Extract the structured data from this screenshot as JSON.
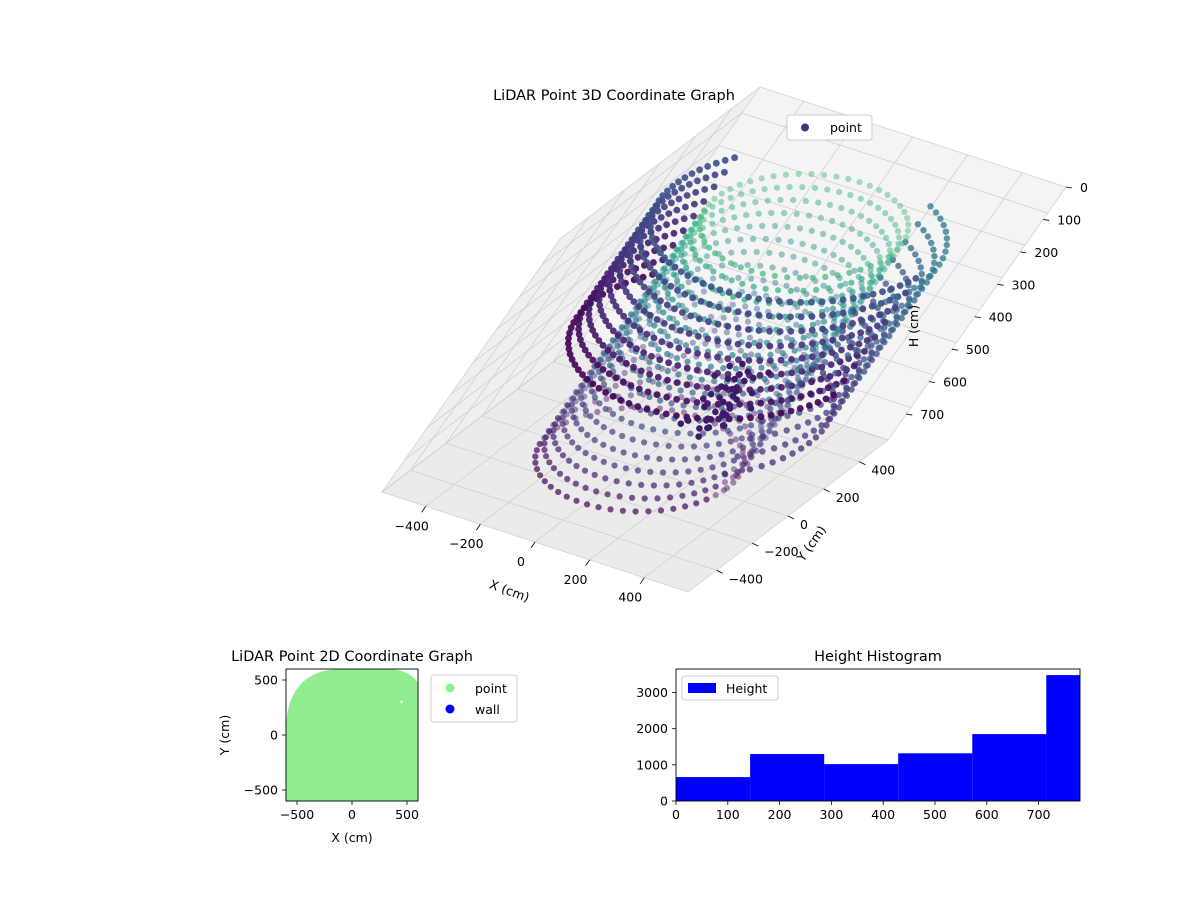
{
  "chart_data": [
    {
      "type": "scatter",
      "projection": "3d",
      "title": "LiDAR Point 3D Coordinate Graph",
      "xlabel": "X (cm)",
      "ylabel": "Y (cm)",
      "zlabel": "H (cm)",
      "x_ticks": [
        "−400",
        "−200",
        "0",
        "200",
        "400"
      ],
      "y_ticks": [
        "−400",
        "−200",
        "0",
        "200",
        "400"
      ],
      "z_ticks": [
        "0",
        "100",
        "200",
        "300",
        "400",
        "500",
        "600",
        "700"
      ],
      "xlim": [
        -560,
        560
      ],
      "ylim": [
        -560,
        560
      ],
      "zlim": [
        0,
        780
      ],
      "z_inverted": true,
      "colormap": "viridis",
      "legend": [
        {
          "label": "point",
          "color": "#46317e"
        }
      ],
      "legend_position": "top-right",
      "series": [
        {
          "shape": "ring",
          "radius": 480,
          "z_range": [
            380,
            780
          ],
          "theta_range_deg": [
            155,
            345
          ],
          "note_color": "dark purple outer band"
        },
        {
          "shape": "ring",
          "radius": 320,
          "z_range": [
            0,
            780
          ],
          "theta_range_deg": [
            0,
            360
          ],
          "note_color": "purple to teal inner cylinder"
        }
      ]
    },
    {
      "type": "scatter",
      "title": "LiDAR Point 2D Coordinate Graph",
      "xlabel": "X (cm)",
      "ylabel": "Y (cm)",
      "x_ticks": [
        "−500",
        "0",
        "500"
      ],
      "y_ticks": [
        "−500",
        "0",
        "500"
      ],
      "xlim": [
        -600,
        600
      ],
      "ylim": [
        -600,
        600
      ],
      "legend": [
        {
          "label": "point",
          "color": "#90ee90"
        },
        {
          "label": "wall",
          "color": "#0000ff"
        }
      ],
      "legend_position": "outside-right"
    },
    {
      "type": "bar",
      "chart_kind": "histogram",
      "title": "Height Histogram",
      "xlabel": "",
      "ylabel": "",
      "bin_edges": [
        0,
        143,
        286,
        429,
        572,
        715,
        780
      ],
      "values": [
        660,
        1300,
        1020,
        1320,
        1850,
        3480
      ],
      "x_ticks": [
        "0",
        "100",
        "200",
        "300",
        "400",
        "500",
        "600",
        "700"
      ],
      "y_ticks": [
        "0",
        "1000",
        "2000",
        "3000"
      ],
      "xlim": [
        0,
        780
      ],
      "ylim": [
        0,
        3650
      ],
      "color": "#0000ff",
      "legend": [
        {
          "label": "Height",
          "color": "#0000ff"
        }
      ],
      "legend_position": "top-left"
    }
  ]
}
